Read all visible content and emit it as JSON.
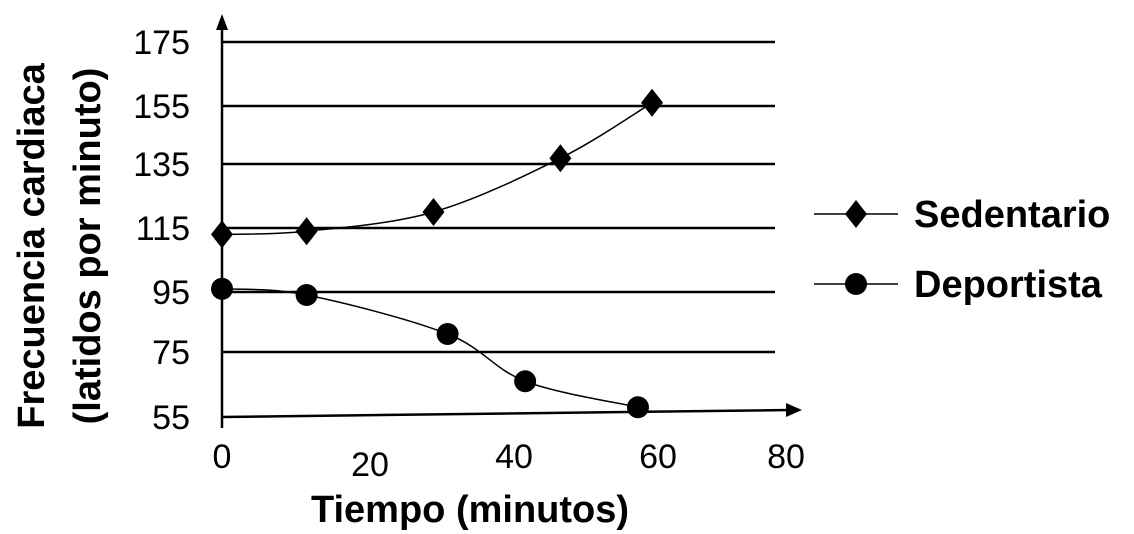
{
  "chart_data": {
    "type": "line",
    "xlabel": "Tiempo (minutos)",
    "ylabel_line1": "Frecuencia cardiaca",
    "ylabel_line2": "(latidos por minuto)",
    "x_ticks": [
      "0",
      "20",
      "40",
      "60",
      "80"
    ],
    "x_tick_values": [
      0,
      20,
      40,
      60,
      80
    ],
    "y_ticks": [
      "175",
      "155",
      "135",
      "115",
      "95",
      "75",
      "55"
    ],
    "y_tick_values": [
      175,
      155,
      135,
      115,
      95,
      75,
      55
    ],
    "xlim": [
      0,
      80
    ],
    "ylim": [
      55,
      175
    ],
    "grid": "horizontal",
    "legend_position": "right",
    "series": [
      {
        "name": "Sedentario",
        "marker": "diamond",
        "x": [
          0,
          12,
          30,
          48,
          61
        ],
        "y": [
          113,
          114,
          120,
          137,
          156
        ]
      },
      {
        "name": "Deportista",
        "marker": "circle",
        "x": [
          0,
          12,
          32,
          43,
          59
        ],
        "y": [
          96,
          94,
          81,
          66,
          58
        ]
      }
    ]
  }
}
